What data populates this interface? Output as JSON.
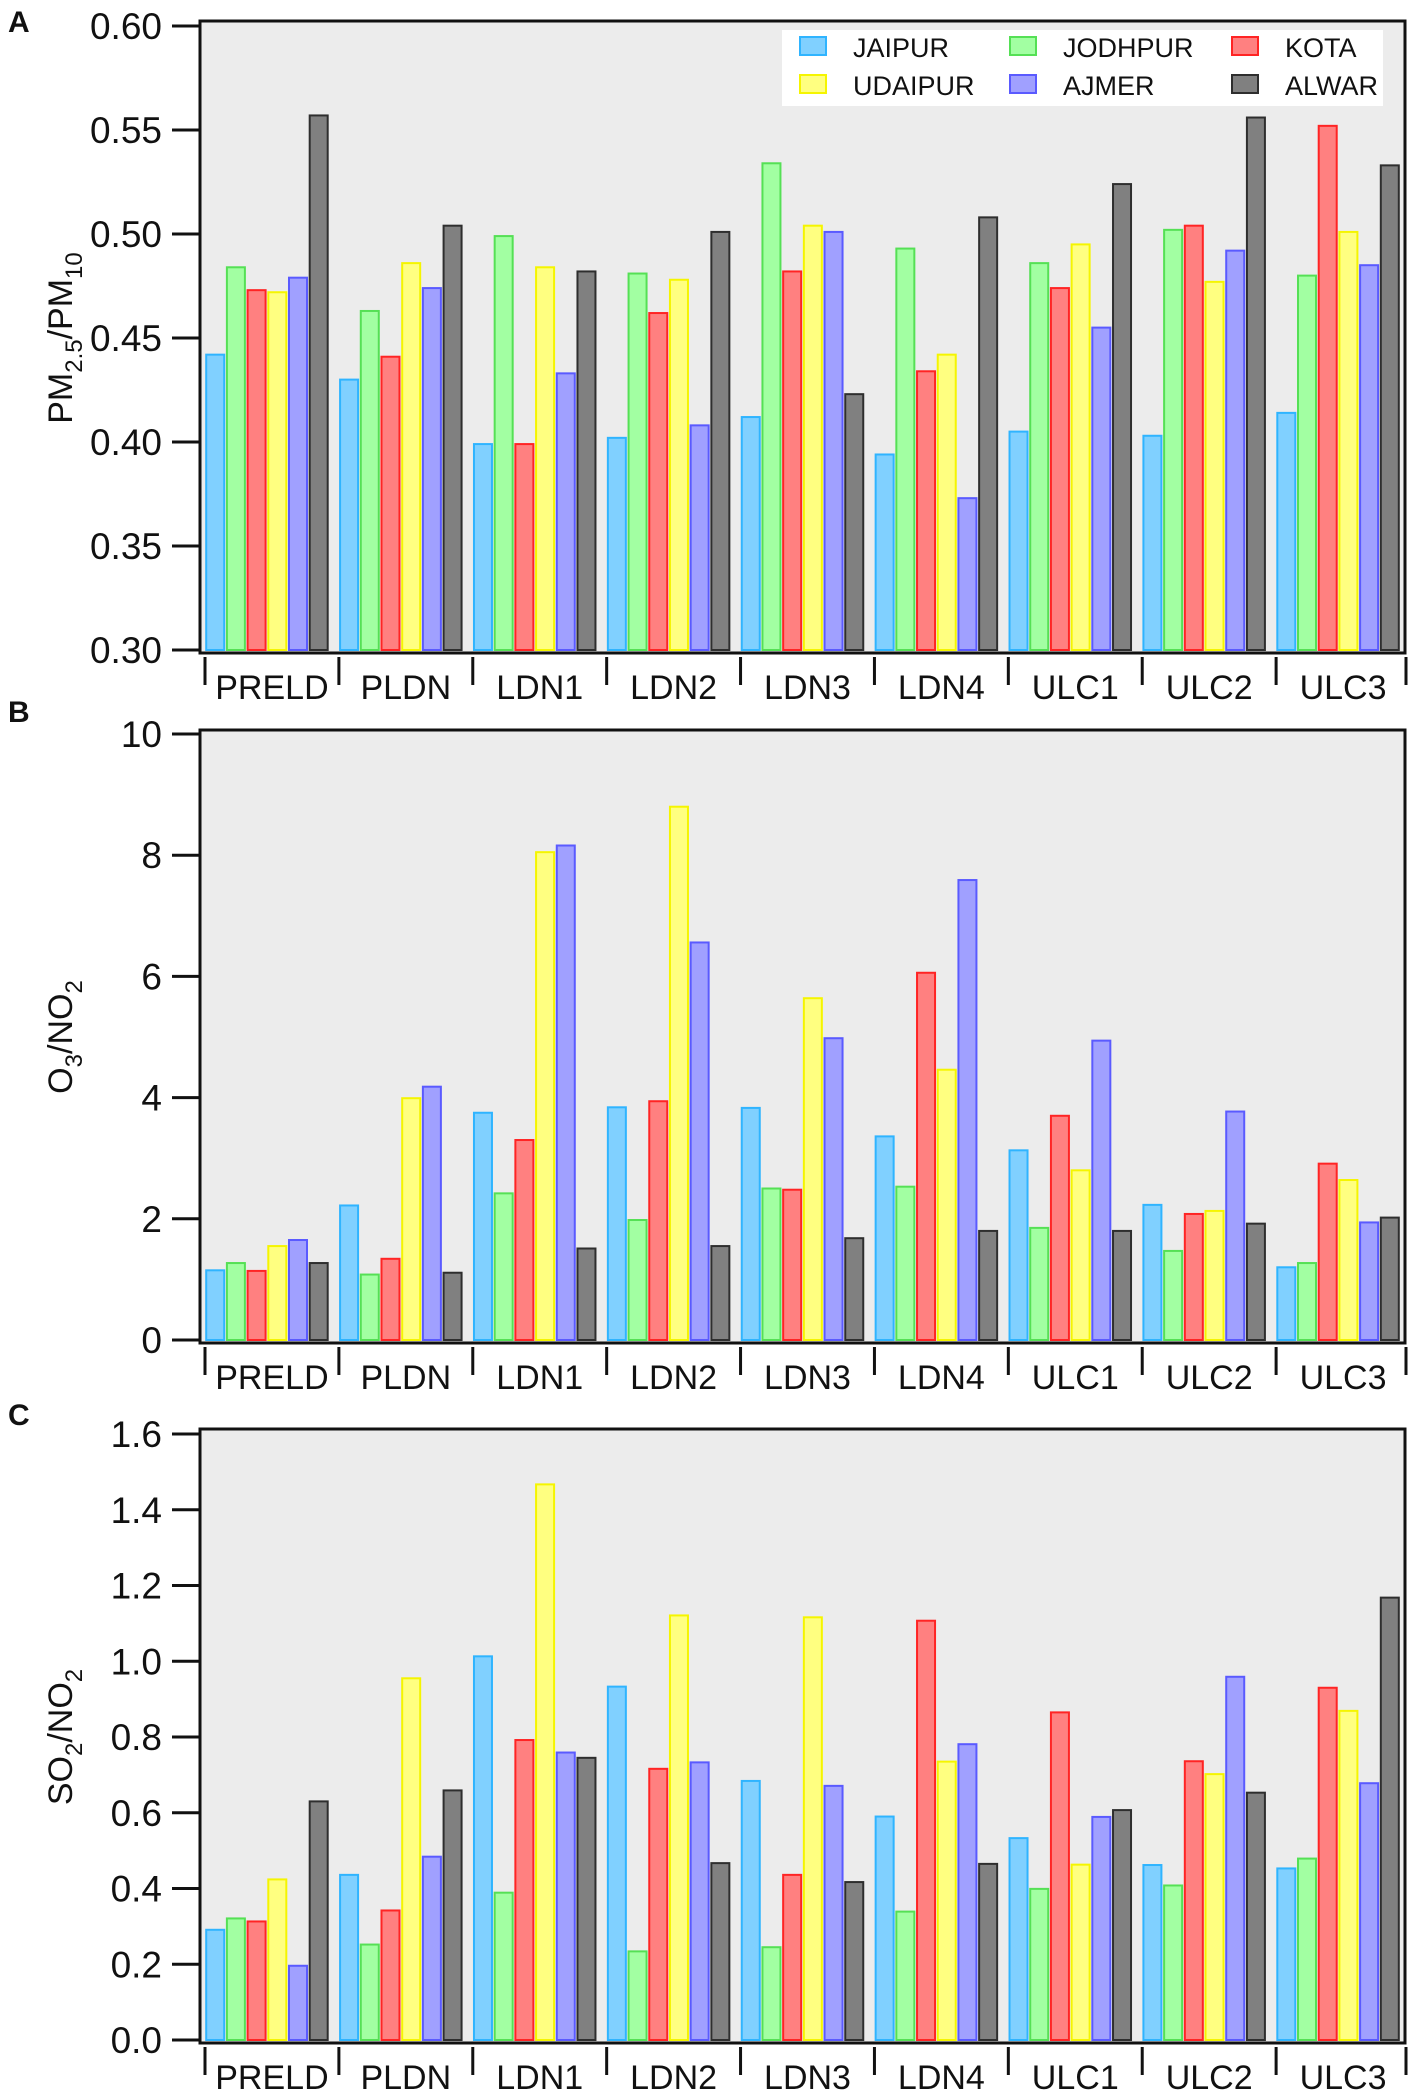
{
  "chart_data": [
    {
      "type": "bar",
      "panel": "A",
      "ylabel_parts": [
        {
          "t": "PM",
          "sub": false
        },
        {
          "t": "2.5",
          "sub": true
        },
        {
          "t": "/PM",
          "sub": false
        },
        {
          "t": "10",
          "sub": true
        }
      ],
      "ylim": [
        0.3,
        0.6
      ],
      "yticks": [
        "0.30",
        "0.35",
        "0.40",
        "0.45",
        "0.50",
        "0.55",
        "0.60"
      ],
      "categories": [
        "PRELD",
        "PLDN",
        "LDN1",
        "LDN2",
        "LDN3",
        "LDN4",
        "ULC1",
        "ULC2",
        "ULC3"
      ],
      "series": [
        {
          "name": "JAIPUR",
          "values": [
            0.442,
            0.43,
            0.399,
            0.402,
            0.412,
            0.394,
            0.405,
            0.403,
            0.414
          ]
        },
        {
          "name": "JODHPUR",
          "values": [
            0.484,
            0.463,
            0.499,
            0.481,
            0.534,
            0.493,
            0.486,
            0.502,
            0.48
          ]
        },
        {
          "name": "KOTA",
          "values": [
            0.473,
            0.441,
            0.399,
            0.462,
            0.482,
            0.434,
            0.474,
            0.504,
            0.552
          ]
        },
        {
          "name": "UDAIPUR",
          "values": [
            0.472,
            0.486,
            0.484,
            0.478,
            0.504,
            0.442,
            0.495,
            0.477,
            0.501
          ]
        },
        {
          "name": "AJMER",
          "values": [
            0.479,
            0.474,
            0.433,
            0.408,
            0.501,
            0.373,
            0.455,
            0.492,
            0.485
          ]
        },
        {
          "name": "ALWAR",
          "values": [
            0.557,
            0.504,
            0.482,
            0.501,
            0.423,
            0.508,
            0.524,
            0.556,
            0.533
          ]
        }
      ],
      "legend": "top-right"
    },
    {
      "type": "bar",
      "panel": "B",
      "ylabel_parts": [
        {
          "t": "O",
          "sub": false
        },
        {
          "t": "3",
          "sub": true
        },
        {
          "t": "/NO",
          "sub": false
        },
        {
          "t": "2",
          "sub": true
        }
      ],
      "ylim": [
        0,
        10
      ],
      "yticks": [
        "0",
        "2",
        "4",
        "6",
        "8",
        "10"
      ],
      "categories": [
        "PRELD",
        "PLDN",
        "LDN1",
        "LDN2",
        "LDN3",
        "LDN4",
        "ULC1",
        "ULC2",
        "ULC3"
      ],
      "series": [
        {
          "name": "JAIPUR",
          "values": [
            1.15,
            2.22,
            3.75,
            3.84,
            3.83,
            3.36,
            3.13,
            2.23,
            1.2
          ]
        },
        {
          "name": "JODHPUR",
          "values": [
            1.27,
            1.08,
            2.42,
            1.98,
            2.5,
            2.53,
            1.85,
            1.47,
            1.27
          ]
        },
        {
          "name": "KOTA",
          "values": [
            1.14,
            1.34,
            3.3,
            3.94,
            2.48,
            6.06,
            3.7,
            2.08,
            2.91
          ]
        },
        {
          "name": "UDAIPUR",
          "values": [
            1.55,
            3.99,
            8.05,
            8.8,
            5.64,
            4.46,
            2.8,
            2.13,
            2.64
          ]
        },
        {
          "name": "AJMER",
          "values": [
            1.65,
            4.18,
            8.16,
            6.56,
            4.98,
            7.59,
            4.94,
            3.77,
            1.94
          ]
        },
        {
          "name": "ALWAR",
          "values": [
            1.27,
            1.11,
            1.51,
            1.55,
            1.68,
            1.8,
            1.8,
            1.92,
            2.02
          ]
        }
      ]
    },
    {
      "type": "bar",
      "panel": "C",
      "ylabel_parts": [
        {
          "t": "SO",
          "sub": false
        },
        {
          "t": "2",
          "sub": true
        },
        {
          "t": "/NO",
          "sub": false
        },
        {
          "t": "2",
          "sub": true
        }
      ],
      "ylim": [
        0,
        1.6
      ],
      "yticks": [
        "0.0",
        "0.2",
        "0.4",
        "0.6",
        "0.8",
        "1.0",
        "1.2",
        "1.4",
        "1.6"
      ],
      "categories": [
        "PRELD",
        "PLDN",
        "LDN1",
        "LDN2",
        "LDN3",
        "LDN4",
        "ULC1",
        "ULC2",
        "ULC3"
      ],
      "series": [
        {
          "name": "JAIPUR",
          "values": [
            0.291,
            0.436,
            1.013,
            0.933,
            0.684,
            0.59,
            0.533,
            0.462,
            0.453
          ]
        },
        {
          "name": "JODHPUR",
          "values": [
            0.321,
            0.252,
            0.389,
            0.234,
            0.245,
            0.339,
            0.399,
            0.408,
            0.479
          ]
        },
        {
          "name": "KOTA",
          "values": [
            0.313,
            0.342,
            0.792,
            0.716,
            0.436,
            1.107,
            0.865,
            0.736,
            0.93
          ]
        },
        {
          "name": "UDAIPUR",
          "values": [
            0.424,
            0.955,
            1.467,
            1.121,
            1.116,
            0.735,
            0.463,
            0.702,
            0.869
          ]
        },
        {
          "name": "AJMER",
          "values": [
            0.196,
            0.484,
            0.759,
            0.733,
            0.671,
            0.781,
            0.589,
            0.959,
            0.678
          ]
        },
        {
          "name": "ALWAR",
          "values": [
            0.63,
            0.659,
            0.745,
            0.467,
            0.417,
            0.465,
            0.607,
            0.653,
            1.168
          ]
        }
      ]
    }
  ],
  "legend": {
    "entries": [
      "JAIPUR",
      "JODHPUR",
      "KOTA",
      "UDAIPUR",
      "AJMER",
      "ALWAR"
    ]
  },
  "colors": {
    "JAIPUR": {
      "fill": "#80d0ff",
      "stroke": "#2fb4ff"
    },
    "JODHPUR": {
      "fill": "#a2ffa2",
      "stroke": "#55e055"
    },
    "KOTA": {
      "fill": "#ff8080",
      "stroke": "#ff2424"
    },
    "UDAIPUR": {
      "fill": "#ffff80",
      "stroke": "#f5f500"
    },
    "AJMER": {
      "fill": "#a0a0ff",
      "stroke": "#5a5aff"
    },
    "ALWAR": {
      "fill": "#808080",
      "stroke": "#2e2e2e"
    },
    "plot_bg": "#ececec"
  }
}
